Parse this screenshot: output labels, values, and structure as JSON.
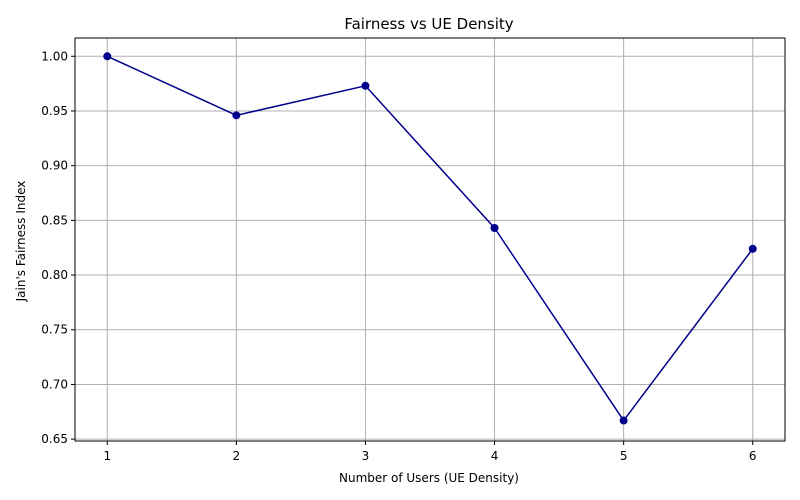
{
  "chart_data": {
    "type": "line",
    "title": "Fairness vs UE Density",
    "xlabel": "Number of Users (UE Density)",
    "ylabel": "Jain's Fairness Index",
    "x": [
      1,
      2,
      3,
      4,
      5,
      6
    ],
    "series": [
      {
        "values": [
          1.0,
          0.946,
          0.973,
          0.843,
          0.667,
          0.824
        ]
      }
    ],
    "xlim": [
      0.75,
      6.25
    ],
    "ylim": [
      0.6483,
      1.0167
    ],
    "xticks": [
      1,
      2,
      3,
      4,
      5,
      6
    ],
    "xtick_labels": [
      "1",
      "2",
      "3",
      "4",
      "5",
      "6"
    ],
    "yticks": [
      0.65,
      0.7,
      0.75,
      0.8,
      0.85,
      0.9,
      0.95,
      1.0
    ],
    "ytick_labels": [
      "0.65",
      "0.70",
      "0.75",
      "0.80",
      "0.85",
      "0.90",
      "0.95",
      "1.00"
    ],
    "grid": true,
    "line_color": "#00008b",
    "marker": "circle"
  }
}
